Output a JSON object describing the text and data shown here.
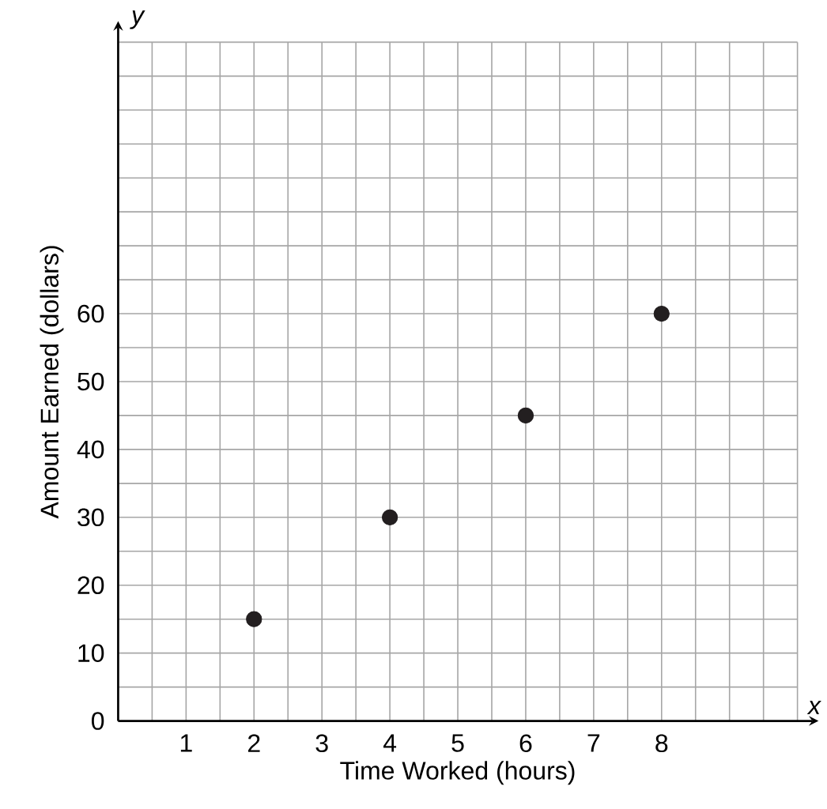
{
  "chart_data": {
    "type": "scatter",
    "xlabel": "Time Worked (hours)",
    "ylabel": "Amount Earned (dollars)",
    "x": [
      2,
      4,
      6,
      8
    ],
    "series": [
      {
        "color": "#231f20",
        "values": [
          15,
          30,
          45,
          60
        ]
      }
    ],
    "xlim": [
      0,
      10
    ],
    "ylim": [
      0,
      100
    ],
    "xticks": [
      1,
      2,
      3,
      4,
      5,
      6,
      7,
      8
    ],
    "yticks": [
      0,
      10,
      20,
      30,
      40,
      50,
      60
    ],
    "grid": true,
    "annotations": [
      "x",
      "y"
    ]
  }
}
